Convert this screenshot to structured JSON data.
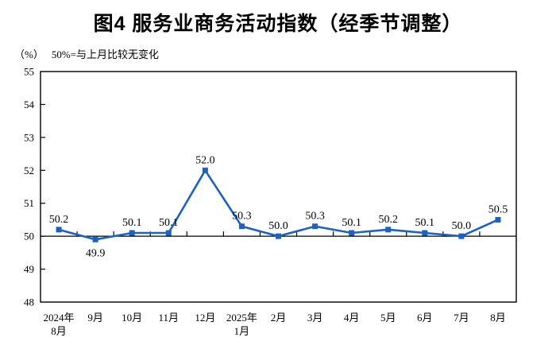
{
  "header": {
    "title": "图4 服务业商务活动指数（经季节调整）",
    "unit_note": "（%）",
    "reference_note": "50%=与上月比较无变化"
  },
  "chart_data": {
    "type": "line",
    "title": "图4 服务业商务活动指数（经季节调整）",
    "ylabel": "%",
    "ylim": [
      48,
      55
    ],
    "y_ticks": [
      48,
      49,
      50,
      51,
      52,
      53,
      54,
      55
    ],
    "reference_line": 50,
    "grid": false,
    "legend": "none",
    "line_color": "#1b62c5",
    "marker": "square",
    "categories": [
      [
        "2024年",
        "8月"
      ],
      [
        "9月"
      ],
      [
        "10月"
      ],
      [
        "11月"
      ],
      [
        "12月"
      ],
      [
        "2025年",
        "1月"
      ],
      [
        "2月"
      ],
      [
        "3月"
      ],
      [
        "4月"
      ],
      [
        "5月"
      ],
      [
        "6月"
      ],
      [
        "7月"
      ],
      [
        "8月"
      ]
    ],
    "series": [
      {
        "name": "服务业商务活动指数",
        "values": [
          50.2,
          49.9,
          50.1,
          50.1,
          52.0,
          50.3,
          50.0,
          50.3,
          50.1,
          50.2,
          50.1,
          50.0,
          50.5
        ]
      }
    ],
    "data_labels": [
      "50.2",
      "49.9",
      "50.1",
      "50.1",
      "52.0",
      "50.3",
      "50.0",
      "50.3",
      "50.1",
      "50.2",
      "50.1",
      "50.0",
      "50.5"
    ]
  }
}
